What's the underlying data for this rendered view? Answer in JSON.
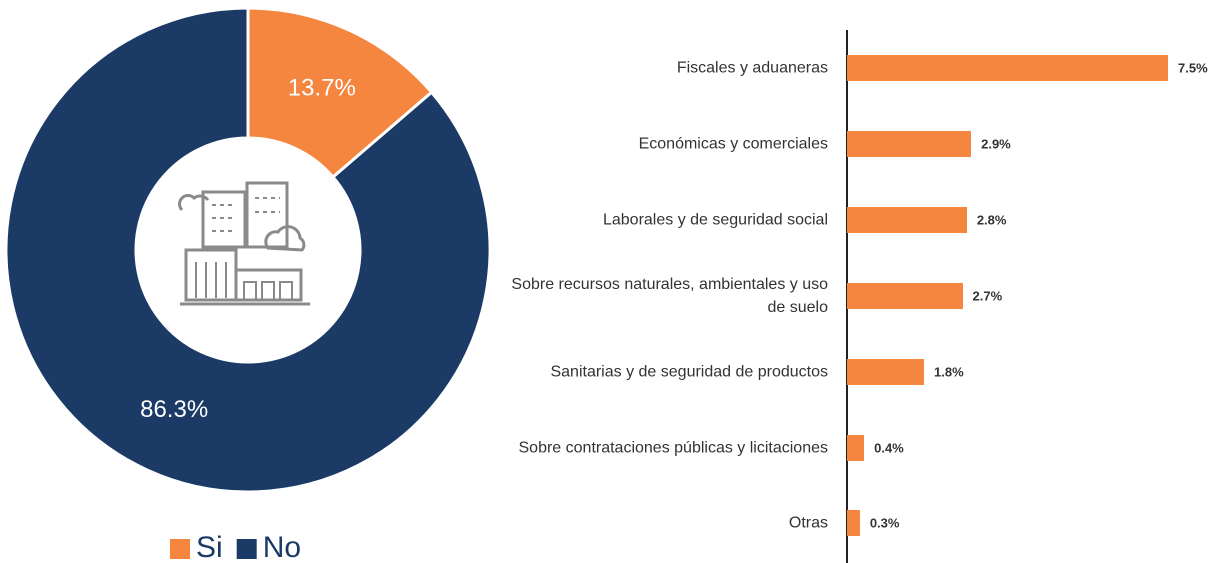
{
  "chart_data": [
    {
      "type": "pie",
      "donut": true,
      "categories": [
        "Si",
        "No"
      ],
      "values": [
        13.7,
        86.3
      ],
      "value_labels": [
        "13.7%",
        "86.3%"
      ],
      "colors": [
        "#f4863f",
        "#1c3a66"
      ]
    },
    {
      "type": "bar",
      "orientation": "horizontal",
      "categories": [
        "Fiscales y aduaneras",
        "Económicas y comerciales",
        "Laborales y de seguridad social",
        "Sobre recursos naturales, ambientales y uso de suelo",
        "Sanitarias y de seguridad de productos",
        "Sobre contrataciones públicas y licitaciones",
        "Otras"
      ],
      "values": [
        7.5,
        2.9,
        2.8,
        2.7,
        1.8,
        0.4,
        0.3
      ],
      "value_labels": [
        "7.5%",
        "2.9%",
        "2.8%",
        "2.7%",
        "1.8%",
        "0.4%",
        "0.3%"
      ],
      "color": "#f4863f"
    }
  ]
}
